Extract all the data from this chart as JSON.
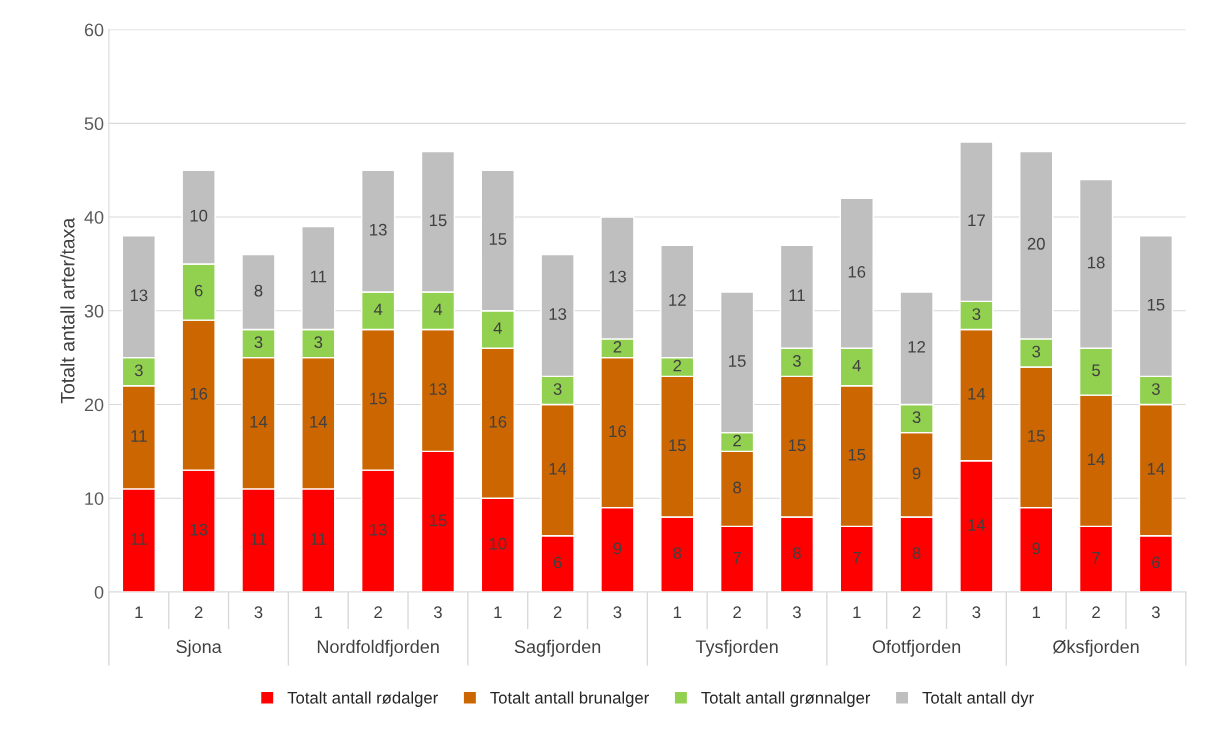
{
  "chart_data": {
    "type": "bar",
    "stacked": true,
    "ylabel": "Totalt antall arter/taxa",
    "categories": [
      "1",
      "2",
      "3",
      "1",
      "2",
      "3",
      "1",
      "2",
      "3",
      "1",
      "2",
      "3",
      "1",
      "2",
      "3",
      "1",
      "2",
      "3"
    ],
    "annotations": [
      "Sjona",
      "Nordfoldfjorden",
      "Sagfjorden",
      "Tysfjorden",
      "Ofotfjorden",
      "Øksfjorden"
    ],
    "series": [
      {
        "name": "Totalt antall rødalger",
        "color": "#ff0000",
        "values": [
          11,
          13,
          11,
          11,
          13,
          15,
          10,
          6,
          9,
          8,
          7,
          8,
          7,
          8,
          14,
          9,
          7,
          6
        ]
      },
      {
        "name": "Totalt antall brunalger",
        "color": "#cc6600",
        "values": [
          11,
          16,
          14,
          14,
          15,
          13,
          16,
          14,
          16,
          15,
          8,
          15,
          15,
          9,
          14,
          15,
          14,
          14
        ]
      },
      {
        "name": "Totalt antall grønnalger",
        "color": "#92d050",
        "values": [
          3,
          6,
          3,
          3,
          4,
          4,
          4,
          3,
          2,
          2,
          2,
          3,
          4,
          3,
          3,
          3,
          5,
          3
        ]
      },
      {
        "name": "Totalt antall dyr",
        "color": "#bfbfbf",
        "values": [
          13,
          10,
          8,
          11,
          13,
          15,
          15,
          13,
          13,
          12,
          15,
          11,
          16,
          12,
          17,
          20,
          18,
          15
        ]
      }
    ],
    "ylim": [
      0,
      60
    ],
    "yticks": [
      0,
      10,
      20,
      30,
      40,
      50,
      60
    ],
    "grid": "y",
    "data_labels": true,
    "legend": "bottom"
  }
}
